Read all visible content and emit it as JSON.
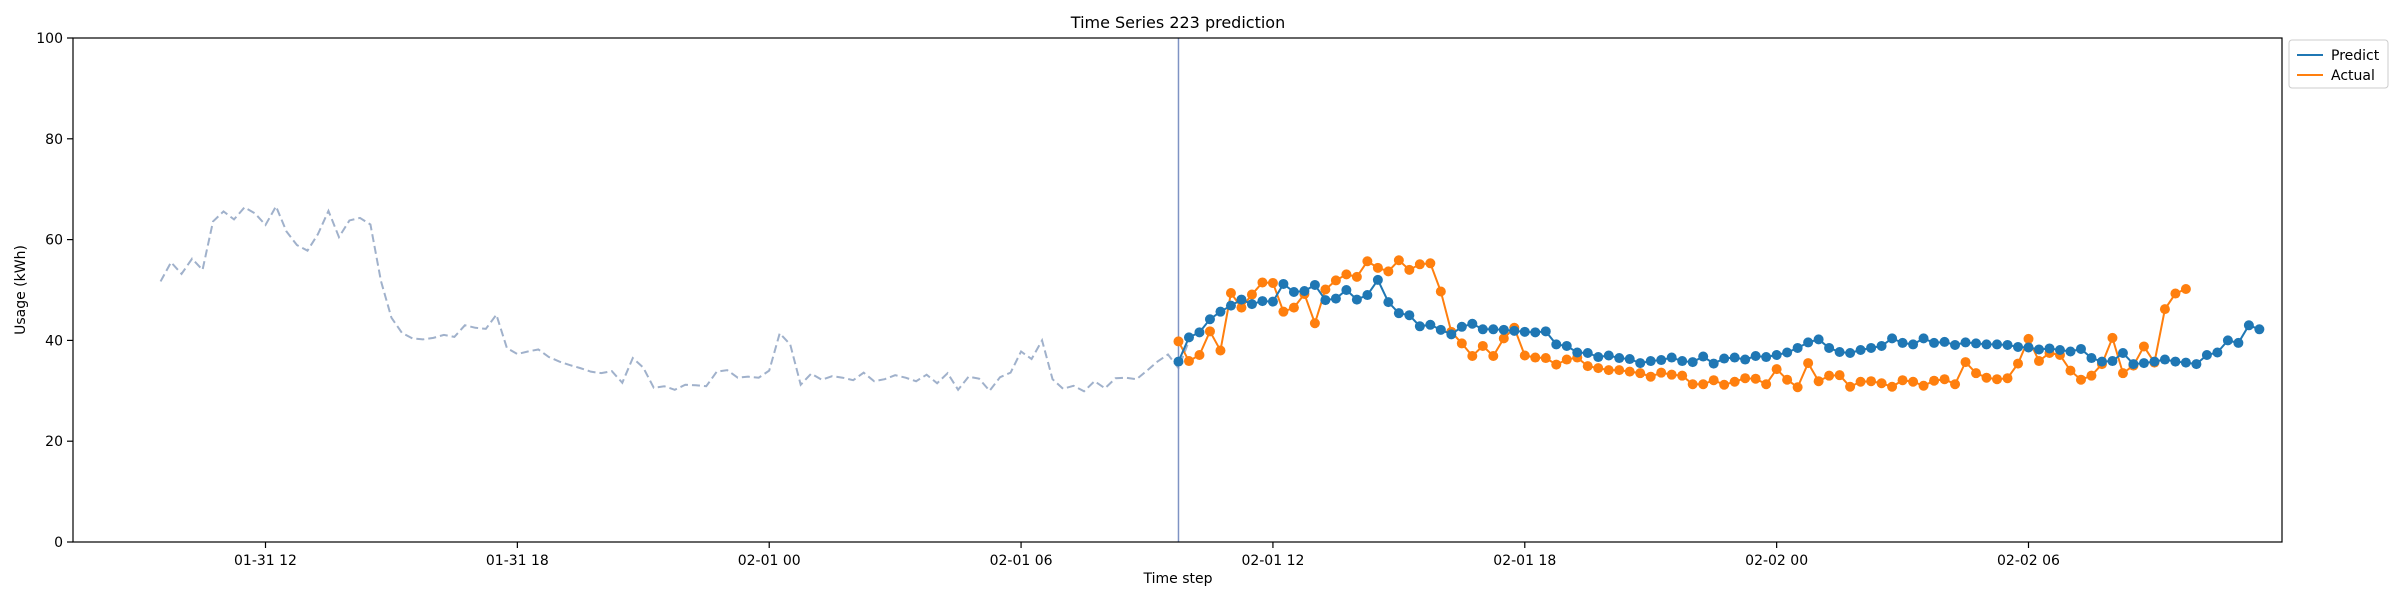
{
  "chart_data": {
    "type": "line",
    "title": "Time Series 223 prediction",
    "xlabel": "Time step",
    "ylabel": "Usage (kWh)",
    "ylim": [
      0,
      100
    ],
    "y_ticks": [
      0,
      20,
      40,
      60,
      80,
      100
    ],
    "x_ticks": [
      "01-31 12",
      "01-31 18",
      "02-01 00",
      "02-01 06",
      "02-01 12",
      "02-01 18",
      "02-02 00",
      "02-02 06"
    ],
    "grid": false,
    "legend": "top-right, outside plot",
    "forecast_start": "02-01 09:45",
    "history": {
      "start": "01-31 09:30",
      "step_minutes": 15,
      "color": "#a0b1cb",
      "values": [
        51.7,
        55.5,
        53.2,
        56.2,
        54.0,
        63.6,
        65.6,
        64.0,
        66.4,
        65.2,
        62.9,
        66.6,
        61.6,
        58.9,
        57.8,
        61.1,
        65.7,
        60.5,
        63.8,
        64.3,
        63.0,
        51.8,
        44.5,
        41.5,
        40.4,
        40.2,
        40.5,
        41.1,
        40.7,
        43.0,
        42.5,
        42.3,
        45.1,
        38.5,
        37.3,
        37.8,
        38.2,
        36.7,
        35.8,
        35.1,
        34.5,
        33.8,
        33.5,
        33.9,
        31.6,
        36.5,
        34.6,
        30.6,
        30.9,
        30.2,
        31.2,
        31.1,
        30.9,
        33.8,
        34.1,
        32.6,
        32.8,
        32.6,
        34.0,
        41.4,
        39.2,
        31.2,
        33.4,
        32.2,
        32.9,
        32.6,
        32.1,
        33.6,
        31.9,
        32.3,
        33.1,
        32.6,
        31.9,
        33.2,
        31.5,
        33.5,
        30.2,
        32.8,
        32.4,
        30.0,
        32.7,
        33.6,
        37.8,
        36.3,
        40.0,
        32.3,
        30.4,
        31.0,
        29.9,
        31.9,
        30.5,
        32.5,
        32.6,
        32.3,
        34.0,
        35.8,
        37.2,
        34.5,
        39.9
      ]
    },
    "series": [
      {
        "name": "Predict",
        "color": "#1f77b4",
        "start": "02-01 09:45",
        "step_minutes": 15,
        "values": [
          35.8,
          40.6,
          41.6,
          44.2,
          45.7,
          46.9,
          48.1,
          47.2,
          47.8,
          47.7,
          51.2,
          49.6,
          49.8,
          51.0,
          48.0,
          48.3,
          50.0,
          48.1,
          49.0,
          52.0,
          47.6,
          45.4,
          45.0,
          42.8,
          43.1,
          42.1,
          41.2,
          42.7,
          43.3,
          42.2,
          42.2,
          42.1,
          41.9,
          41.7,
          41.6,
          41.8,
          39.2,
          38.9,
          37.6,
          37.5,
          36.7,
          37.0,
          36.5,
          36.3,
          35.5,
          35.9,
          36.1,
          36.6,
          35.9,
          35.7,
          36.8,
          35.4,
          36.4,
          36.6,
          36.2,
          36.9,
          36.7,
          37.1,
          37.6,
          38.5,
          39.6,
          40.2,
          38.5,
          37.7,
          37.5,
          38.1,
          38.5,
          38.9,
          40.4,
          39.5,
          39.2,
          40.4,
          39.5,
          39.7,
          39.1,
          39.6,
          39.4,
          39.2,
          39.2,
          39.1,
          38.7,
          38.6,
          38.2,
          38.4,
          38.1,
          37.8,
          38.3,
          36.5,
          35.8,
          35.9,
          37.5,
          35.3,
          35.5,
          35.8,
          36.2,
          35.8,
          35.6,
          35.3,
          37.1,
          37.6,
          40.0,
          39.5,
          43.0,
          42.2
        ]
      },
      {
        "name": "Actual",
        "color": "#ff7f0e",
        "start": "02-01 09:45",
        "step_minutes": 15,
        "values": [
          39.8,
          35.9,
          37.1,
          41.8,
          38.0,
          49.4,
          46.5,
          49.1,
          51.5,
          51.4,
          45.7,
          46.5,
          49.2,
          43.4,
          50.1,
          51.9,
          53.1,
          52.6,
          55.7,
          54.4,
          53.7,
          55.9,
          54.0,
          55.1,
          55.3,
          49.7,
          41.7,
          39.4,
          36.9,
          38.9,
          36.9,
          40.4,
          42.5,
          37.0,
          36.6,
          36.5,
          35.2,
          36.2,
          36.6,
          34.9,
          34.5,
          34.1,
          34.1,
          33.8,
          33.5,
          32.8,
          33.6,
          33.2,
          33.0,
          31.3,
          31.3,
          32.1,
          31.2,
          31.8,
          32.5,
          32.4,
          31.3,
          34.3,
          32.2,
          30.7,
          35.5,
          31.9,
          33.0,
          33.1,
          30.8,
          31.8,
          31.9,
          31.5,
          30.8,
          32.1,
          31.8,
          31.0,
          32.0,
          32.3,
          31.3,
          35.7,
          33.5,
          32.6,
          32.3,
          32.5,
          35.4,
          40.3,
          35.9,
          37.5,
          37.1,
          34.0,
          32.2,
          33.0,
          35.3,
          40.5,
          33.5,
          35.0,
          38.8,
          35.6,
          46.2,
          49.3,
          50.2
        ]
      }
    ]
  }
}
